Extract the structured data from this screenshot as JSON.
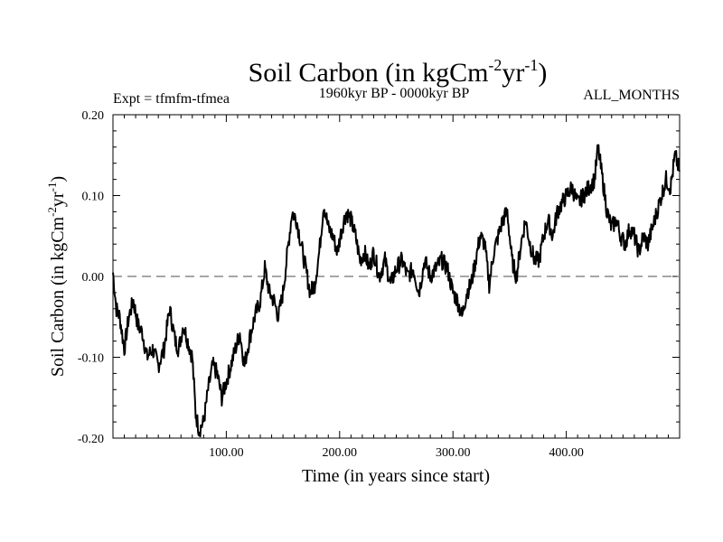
{
  "header": {
    "title_main": "Soil Carbon (in kgCm",
    "title_sup1": "-2",
    "title_mid": "yr",
    "title_sup2": "-1",
    "title_end": ")",
    "expt": "Expt = tfmfm-tfmea",
    "period": "1960kyr BP - 0000kyr BP",
    "months": "ALL_MONTHS"
  },
  "chart_data": {
    "type": "line",
    "title": "Soil Carbon (in kgCm-2yr-1)",
    "xlabel": "Time (in years since start)",
    "ylabel_main": "Soil Carbon (in kgCm",
    "ylabel_sup1": "-2",
    "ylabel_mid": "yr",
    "ylabel_sup2": "-1",
    "ylabel_end": ")",
    "xlim": [
      0,
      500
    ],
    "ylim": [
      -0.2,
      0.2
    ],
    "x_ticks": [
      100,
      200,
      300,
      400
    ],
    "x_tick_labels": [
      "100.00",
      "200.00",
      "300.00",
      "400.00"
    ],
    "y_ticks": [
      -0.2,
      -0.1,
      0.0,
      0.1,
      0.2
    ],
    "y_tick_labels": [
      "-0.20",
      "-0.10",
      "0.00",
      "0.10",
      "0.20"
    ],
    "reference_line": 0.0,
    "series": [
      {
        "name": "Soil Carbon",
        "color": "#000000",
        "x": [
          0,
          3,
          6,
          10,
          14,
          18,
          22,
          26,
          30,
          35,
          40,
          45,
          50,
          55,
          58,
          62,
          66,
          70,
          73,
          76,
          80,
          84,
          88,
          92,
          96,
          100,
          104,
          108,
          112,
          116,
          120,
          125,
          130,
          134,
          138,
          142,
          146,
          150,
          154,
          158,
          162,
          166,
          170,
          174,
          178,
          182,
          186,
          190,
          194,
          198,
          202,
          206,
          210,
          214,
          218,
          222,
          226,
          230,
          235,
          240,
          245,
          250,
          255,
          260,
          265,
          270,
          275,
          280,
          285,
          290,
          295,
          300,
          304,
          308,
          312,
          316,
          320,
          324,
          328,
          332,
          336,
          340,
          344,
          348,
          352,
          356,
          360,
          364,
          368,
          372,
          376,
          380,
          384,
          388,
          392,
          396,
          400,
          405,
          410,
          415,
          420,
          425,
          428,
          432,
          436,
          440,
          444,
          448,
          452,
          456,
          460,
          464,
          468,
          472,
          476,
          480,
          484,
          488,
          492,
          496,
          500
        ],
        "values": [
          0.005,
          -0.04,
          -0.05,
          -0.09,
          -0.05,
          -0.03,
          -0.06,
          -0.07,
          -0.1,
          -0.09,
          -0.11,
          -0.09,
          -0.04,
          -0.08,
          -0.09,
          -0.06,
          -0.08,
          -0.1,
          -0.17,
          -0.19,
          -0.18,
          -0.14,
          -0.11,
          -0.12,
          -0.15,
          -0.13,
          -0.11,
          -0.09,
          -0.07,
          -0.11,
          -0.08,
          -0.05,
          -0.03,
          0.01,
          -0.02,
          -0.03,
          -0.05,
          -0.02,
          0.03,
          0.08,
          0.07,
          0.04,
          0.01,
          -0.02,
          -0.01,
          0.03,
          0.09,
          0.06,
          0.05,
          0.03,
          0.06,
          0.08,
          0.07,
          0.05,
          0.02,
          0.03,
          0.01,
          0.03,
          0.0,
          0.02,
          -0.01,
          0.01,
          0.02,
          0.0,
          0.01,
          -0.02,
          0.02,
          0.0,
          0.01,
          0.02,
          0.01,
          -0.02,
          -0.03,
          -0.05,
          -0.02,
          -0.01,
          0.02,
          0.05,
          0.04,
          -0.01,
          0.03,
          0.05,
          0.07,
          0.08,
          0.02,
          0.0,
          0.04,
          0.07,
          0.04,
          0.02,
          0.02,
          0.05,
          0.07,
          0.05,
          0.08,
          0.09,
          0.1,
          0.11,
          0.09,
          0.1,
          0.11,
          0.12,
          0.16,
          0.12,
          0.08,
          0.06,
          0.07,
          0.05,
          0.04,
          0.06,
          0.05,
          0.03,
          0.05,
          0.04,
          0.06,
          0.08,
          0.1,
          0.12,
          0.11,
          0.15,
          0.13
        ]
      }
    ]
  }
}
